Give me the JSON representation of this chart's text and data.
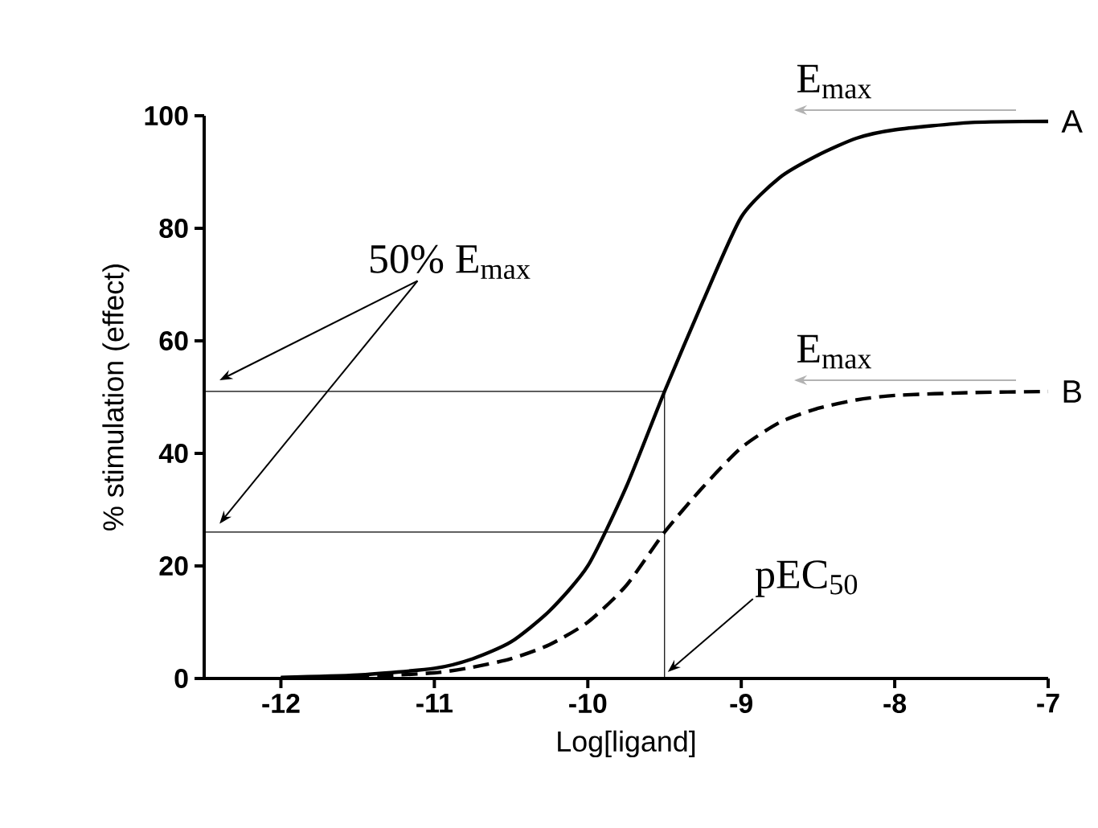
{
  "chart_data": {
    "type": "line",
    "xlabel": "Log[ligand]",
    "ylabel": "% stimulation (effect)",
    "xlim": [
      -12.5,
      -7
    ],
    "ylim": [
      0,
      100
    ],
    "xticks": [
      -12,
      -11,
      -10,
      -9,
      -8,
      -7
    ],
    "yticks": [
      0,
      20,
      40,
      60,
      80,
      100
    ],
    "annotations": [
      "E$_{max}$",
      "E$_{max}$",
      "50% E$_{max}$",
      {
        "text": "pEC$_{50}$",
        "x": -9.5,
        "y": 0
      }
    ],
    "series": [
      {
        "name": "A",
        "color": "#000000",
        "line_style": "solid",
        "x": [
          -12,
          -11.5,
          -11,
          -10.75,
          -10.5,
          -10.25,
          -10,
          -9.75,
          -9.5,
          -9.25,
          -9,
          -8.75,
          -8.5,
          -8.25,
          -8,
          -7.5,
          -7
        ],
        "values": [
          0.2,
          0.6,
          1.8,
          3.5,
          6.5,
          12,
          20,
          34,
          51,
          67,
          82,
          89,
          93,
          96,
          97.5,
          98.8,
          99
        ]
      },
      {
        "name": "B",
        "color": "#000000",
        "line_style": "dashed",
        "x": [
          -12,
          -11.5,
          -11,
          -10.75,
          -10.5,
          -10.25,
          -10,
          -9.75,
          -9.5,
          -9.25,
          -9,
          -8.75,
          -8.5,
          -8.25,
          -8,
          -7.5,
          -7
        ],
        "values": [
          0.1,
          0.3,
          1,
          2,
          3.5,
          6,
          10,
          16.5,
          26,
          34,
          41,
          45.5,
          48,
          49.5,
          50.3,
          50.8,
          51
        ]
      },
      {
        "color": "#000000",
        "line_style": "solid",
        "x": [
          -12.5,
          -9.5,
          -9.5
        ],
        "values": [
          51,
          51,
          0
        ]
      },
      {
        "color": "#000000",
        "line_style": "solid",
        "x": [
          -12.5,
          -9.5
        ],
        "values": [
          26,
          26
        ]
      }
    ]
  }
}
